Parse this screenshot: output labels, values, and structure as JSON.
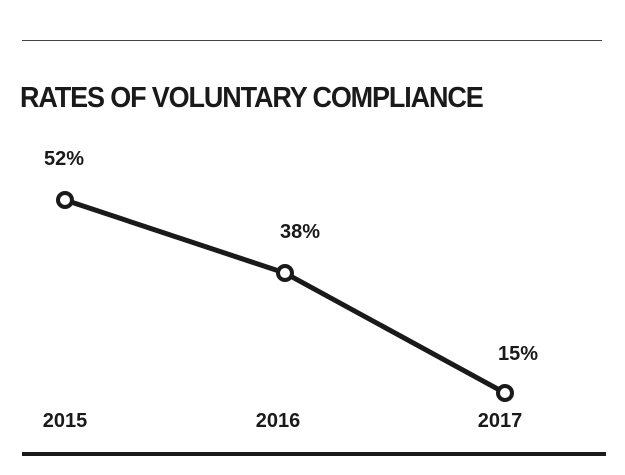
{
  "chart_data": {
    "type": "line",
    "title": "RATES OF VOLUNTARY COMPLIANCE",
    "xlabel": "",
    "ylabel": "",
    "categories": [
      "2015",
      "2016",
      "2017"
    ],
    "series": [
      {
        "values": [
          52,
          38,
          15
        ],
        "labels": [
          "52%",
          "38%",
          "15%"
        ]
      }
    ],
    "ylim": [
      15,
      52
    ],
    "grid": false,
    "line_color": "#1a1a1a",
    "marker": "hollow-circle"
  }
}
